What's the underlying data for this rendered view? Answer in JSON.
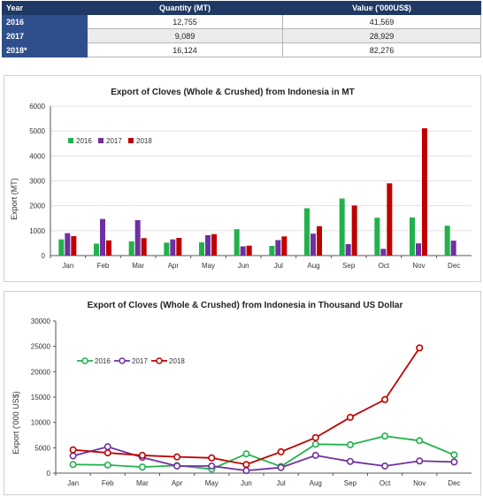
{
  "table": {
    "headers": [
      "Year",
      "Quantity (MT)",
      "Value ('000US$)"
    ],
    "rows": [
      {
        "year": "2016",
        "quantity": "12,755",
        "value": "41,569"
      },
      {
        "year": "2017",
        "quantity": "9,089",
        "value": "28,929"
      },
      {
        "year": "2018*",
        "quantity": "16,124",
        "value": "82,276"
      }
    ],
    "colors": {
      "header_bg": "#1f3864",
      "year_bg": "#2e4f8c"
    }
  },
  "chart_data": [
    {
      "type": "bar",
      "title": "Export of Cloves (Whole & Crushed) from Indonesia in MT",
      "xlabel": "",
      "ylabel": "Export (MT)",
      "ylim": [
        0,
        6000
      ],
      "yticks": [
        0,
        1000,
        2000,
        3000,
        4000,
        5000,
        6000
      ],
      "grid": true,
      "legend_position": "top-left",
      "categories": [
        "Jan",
        "Feb",
        "Mar",
        "Apr",
        "May",
        "Jun",
        "Jul",
        "Aug",
        "Sep",
        "Oct",
        "Nov",
        "Dec"
      ],
      "series": [
        {
          "name": "2016",
          "color": "#22b14c",
          "values": [
            650,
            480,
            570,
            520,
            530,
            1060,
            390,
            1900,
            2290,
            1520,
            1530,
            1200
          ]
        },
        {
          "name": "2017",
          "color": "#7030a0",
          "values": [
            900,
            1470,
            1420,
            650,
            820,
            370,
            620,
            880,
            460,
            270,
            490,
            600
          ]
        },
        {
          "name": "2018",
          "color": "#c00000",
          "values": [
            780,
            610,
            700,
            710,
            860,
            400,
            770,
            1180,
            2010,
            2900,
            5110,
            null
          ]
        }
      ]
    },
    {
      "type": "line",
      "title": "Export of Cloves (Whole & Crushed) from Indonesia in Thousand US Dollar",
      "xlabel": "",
      "ylabel": "Export ('000 US$)",
      "ylim": [
        0,
        30000
      ],
      "yticks": [
        0,
        5000,
        10000,
        15000,
        20000,
        25000,
        30000
      ],
      "grid": false,
      "legend_position": "top-left",
      "categories": [
        "Jan",
        "Feb",
        "Mar",
        "Apr",
        "May",
        "Jun",
        "Jul",
        "Aug",
        "Sep",
        "Oct",
        "Nov",
        "Dec"
      ],
      "series": [
        {
          "name": "2016",
          "color": "#22b14c",
          "values": [
            1700,
            1600,
            1200,
            1500,
            800,
            3800,
            1300,
            5700,
            5600,
            7300,
            6400,
            3600
          ]
        },
        {
          "name": "2017",
          "color": "#7030a0",
          "values": [
            3400,
            5200,
            3100,
            1400,
            1400,
            500,
            1100,
            3500,
            2300,
            1400,
            2400,
            2200
          ]
        },
        {
          "name": "2018",
          "color": "#c00000",
          "values": [
            4600,
            4000,
            3500,
            3200,
            3000,
            1700,
            4200,
            7000,
            11000,
            14500,
            24700,
            null
          ]
        }
      ]
    }
  ]
}
